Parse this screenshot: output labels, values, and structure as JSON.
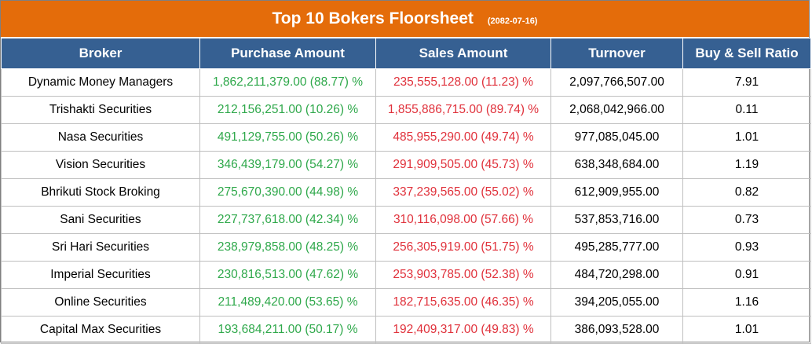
{
  "title": "Top 10 Bokers Floorsheet",
  "date": "(2082-07-16)",
  "headers": [
    "Broker",
    "Purchase Amount",
    "Sales Amount",
    "Turnover",
    "Buy & Sell Ratio"
  ],
  "rows": [
    {
      "broker": "Dynamic Money Managers",
      "purchase": "1,862,211,379.00 (88.77) %",
      "sales": "235,555,128.00 (11.23) %",
      "turnover": "2,097,766,507.00",
      "ratio": "7.91"
    },
    {
      "broker": "Trishakti Securities",
      "purchase": "212,156,251.00 (10.26) %",
      "sales": "1,855,886,715.00 (89.74) %",
      "turnover": "2,068,042,966.00",
      "ratio": "0.11"
    },
    {
      "broker": "Nasa Securities",
      "purchase": "491,129,755.00 (50.26) %",
      "sales": "485,955,290.00 (49.74) %",
      "turnover": "977,085,045.00",
      "ratio": "1.01"
    },
    {
      "broker": "Vision Securities",
      "purchase": "346,439,179.00 (54.27) %",
      "sales": "291,909,505.00 (45.73) %",
      "turnover": "638,348,684.00",
      "ratio": "1.19"
    },
    {
      "broker": "Bhrikuti Stock Broking",
      "purchase": "275,670,390.00 (44.98) %",
      "sales": "337,239,565.00 (55.02) %",
      "turnover": "612,909,955.00",
      "ratio": "0.82"
    },
    {
      "broker": "Sani Securities",
      "purchase": "227,737,618.00 (42.34) %",
      "sales": "310,116,098.00 (57.66) %",
      "turnover": "537,853,716.00",
      "ratio": "0.73"
    },
    {
      "broker": "Sri Hari Securities",
      "purchase": "238,979,858.00 (48.25) %",
      "sales": "256,305,919.00 (51.75) %",
      "turnover": "495,285,777.00",
      "ratio": "0.93"
    },
    {
      "broker": "Imperial Securities",
      "purchase": "230,816,513.00 (47.62) %",
      "sales": "253,903,785.00 (52.38) %",
      "turnover": "484,720,298.00",
      "ratio": "0.91"
    },
    {
      "broker": "Online Securities",
      "purchase": "211,489,420.00 (53.65) %",
      "sales": "182,715,635.00 (46.35) %",
      "turnover": "394,205,055.00",
      "ratio": "1.16"
    },
    {
      "broker": "Capital Max Securities",
      "purchase": "193,684,211.00 (50.17) %",
      "sales": "192,409,317.00 (49.83) %",
      "turnover": "386,093,528.00",
      "ratio": "1.01"
    }
  ]
}
